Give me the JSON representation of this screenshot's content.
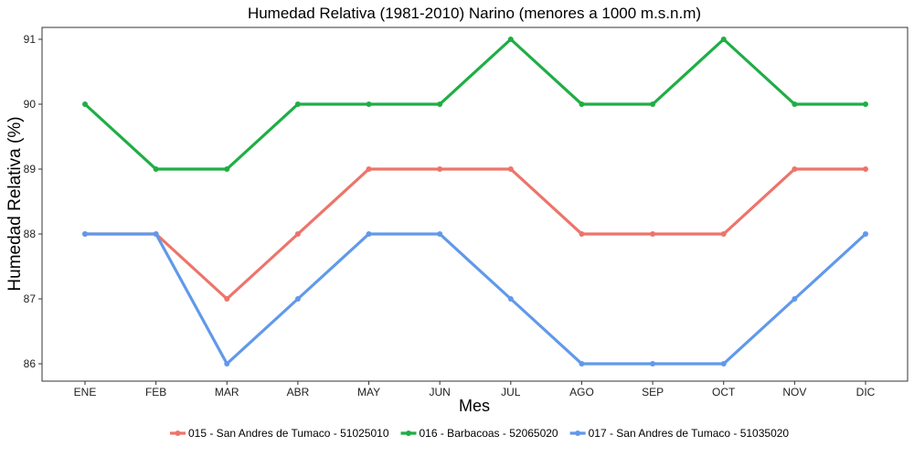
{
  "chart_data": {
    "type": "line",
    "title": "Humedad Relativa (1981-2010) Narino (menores a 1000 m.s.n.m)",
    "xlabel": "Mes",
    "ylabel": "Humedad Relativa (%)",
    "categories": [
      "ENE",
      "FEB",
      "MAR",
      "ABR",
      "MAY",
      "JUN",
      "JUL",
      "AGO",
      "SEP",
      "OCT",
      "NOV",
      "DIC"
    ],
    "ylim": [
      85.8,
      91.3
    ],
    "yticks": [
      86,
      87,
      88,
      89,
      90,
      91
    ],
    "grid": false,
    "legend_position": "bottom",
    "series": [
      {
        "name": "015 - San Andres de Tumaco - 51025010",
        "color": "#ed746b",
        "values": [
          88,
          88,
          87,
          88,
          89,
          89,
          89,
          88,
          88,
          88,
          89,
          89
        ]
      },
      {
        "name": "016 - Barbacoas - 52065020",
        "color": "#1fae45",
        "values": [
          90,
          89,
          89,
          90,
          90,
          90,
          91,
          90,
          90,
          91,
          90,
          90
        ]
      },
      {
        "name": "017 - San Andres de Tumaco - 51035020",
        "color": "#6199ea",
        "values": [
          88,
          88,
          86,
          87,
          88,
          88,
          87,
          86,
          86,
          86,
          87,
          88
        ]
      }
    ]
  }
}
